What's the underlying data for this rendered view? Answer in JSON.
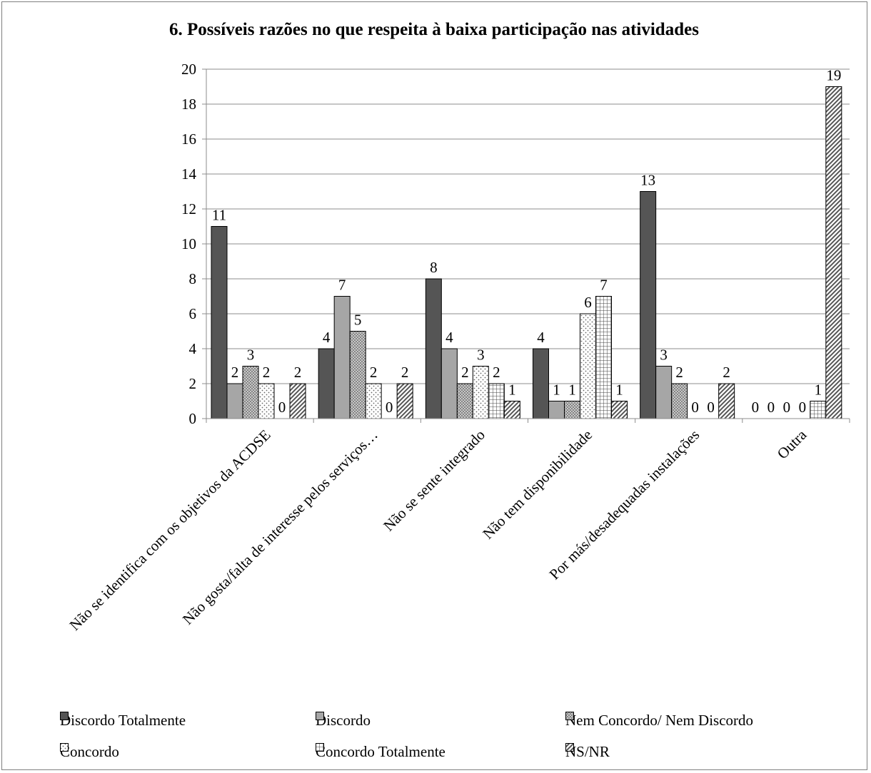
{
  "chart_data": {
    "type": "bar",
    "title": "6. Possíveis razões no que respeita à baixa participação nas atividades",
    "xlabel": "",
    "ylabel": "",
    "ylim": [
      0,
      20
    ],
    "y_ticks": [
      "0",
      "2",
      "4",
      "6",
      "8",
      "10",
      "12",
      "14",
      "16",
      "18",
      "20"
    ],
    "grid": "horizontal",
    "legend_position": "bottom",
    "categories": [
      "Não se identifica com os objetivos da ACDSE",
      "Não gosta/falta de interesse pelos serviços…",
      "Não se sente integrado",
      "Não tem disponibilidade",
      "Por más/desadequadas instalações",
      "Outra"
    ],
    "series": [
      {
        "name": "Discordo Totalmente",
        "values": [
          11,
          4,
          8,
          4,
          13,
          0
        ],
        "labels": [
          "11",
          "4",
          "8",
          "4",
          "13",
          "0"
        ],
        "fill": "#555555",
        "pattern": "solid"
      },
      {
        "name": "Discordo",
        "values": [
          2,
          7,
          4,
          1,
          3,
          0
        ],
        "labels": [
          "2",
          "7",
          "4",
          "1",
          "3",
          "0"
        ],
        "fill": "#a6a6a6",
        "pattern": "solid"
      },
      {
        "name": "Nem Concordo/ Nem Discordo",
        "values": [
          3,
          5,
          2,
          1,
          2,
          0
        ],
        "labels": [
          "3",
          "5",
          "2",
          "1",
          "2",
          "0"
        ],
        "fill": "#b0b0b0",
        "pattern": "dots-dense"
      },
      {
        "name": "Concordo",
        "values": [
          2,
          2,
          3,
          6,
          0,
          0
        ],
        "labels": [
          "2",
          "2",
          "3",
          "6",
          "0",
          "0"
        ],
        "fill": "#ffffff",
        "pattern": "dots-sparse"
      },
      {
        "name": "Concordo Totalmente",
        "values": [
          0,
          0,
          2,
          7,
          0,
          1
        ],
        "labels": [
          "0",
          "0",
          "2",
          "7",
          "0",
          "1"
        ],
        "fill": "#ffffff",
        "pattern": "grid"
      },
      {
        "name": "NS/NR",
        "values": [
          2,
          2,
          1,
          1,
          2,
          19
        ],
        "labels": [
          "2",
          "2",
          "1",
          "1",
          "2",
          "19"
        ],
        "fill": "#ffffff",
        "pattern": "diagonal"
      }
    ]
  }
}
